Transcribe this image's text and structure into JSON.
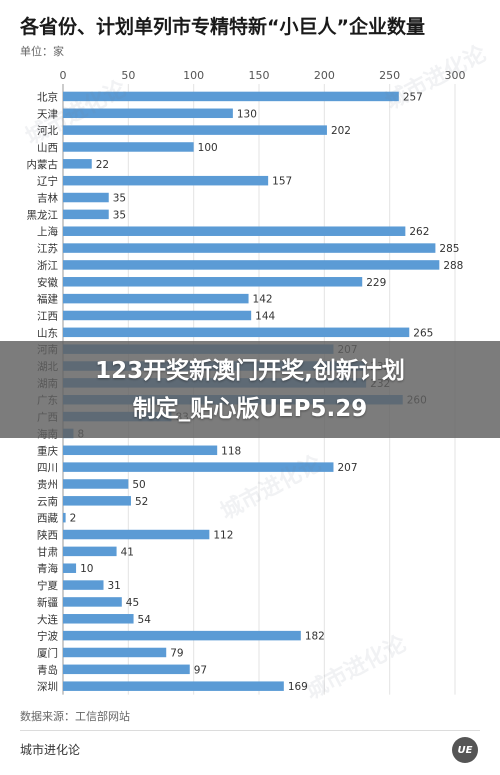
{
  "header": {
    "title": "各省份、计划单列市专精特新“小巨人”企业数量",
    "unit": "单位：家"
  },
  "footer": {
    "source": "数据来源：工信部网站",
    "brand": "城市进化论",
    "logo_text": "UE"
  },
  "overlay": {
    "line1": "123开奖新澳门开奖,创新计划",
    "line2": "制定_贴心版UEP5.29"
  },
  "watermark": "城市进化论",
  "colors": {
    "bar": "#5b9bd5",
    "grid": "#e3e3e3",
    "axis_text": "#555555"
  },
  "chart_data": {
    "type": "bar",
    "orientation": "horizontal",
    "xlim": [
      0,
      300
    ],
    "xticks": [
      0,
      50,
      100,
      150,
      200,
      250,
      300
    ],
    "grid": true,
    "categories": [
      "北京",
      "天津",
      "河北",
      "山西",
      "内蒙古",
      "辽宁",
      "吉林",
      "黑龙江",
      "上海",
      "江苏",
      "浙江",
      "安徽",
      "福建",
      "江西",
      "山东",
      "河南",
      "湖北",
      "湖南",
      "广东",
      "广西",
      "海南",
      "重庆",
      "四川",
      "贵州",
      "云南",
      "西藏",
      "陕西",
      "甘肃",
      "青海",
      "宁夏",
      "新疆",
      "大连",
      "宁波",
      "厦门",
      "青岛",
      "深圳"
    ],
    "values": [
      257,
      130,
      202,
      100,
      22,
      157,
      35,
      35,
      262,
      285,
      288,
      229,
      142,
      144,
      265,
      207,
      232,
      232,
      260,
      83,
      8,
      118,
      207,
      50,
      52,
      2,
      112,
      41,
      10,
      31,
      45,
      54,
      182,
      79,
      97,
      169
    ]
  }
}
